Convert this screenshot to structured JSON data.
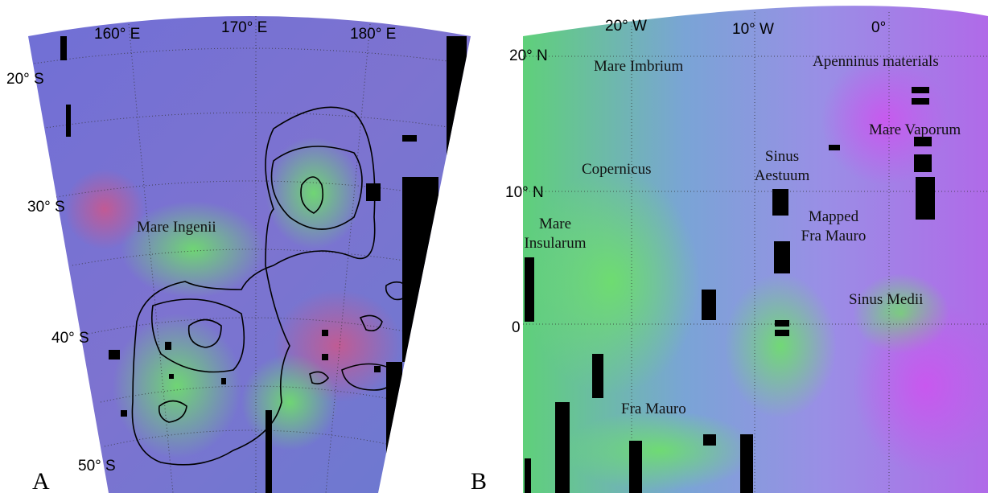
{
  "panel_a": {
    "letter": "A",
    "longitude_labels": [
      "160° E",
      "170° E",
      "180° E"
    ],
    "latitude_labels": [
      "20° S",
      "30° S",
      "40° S",
      "50° S"
    ],
    "feature_labels": [
      "Mare Ingenii"
    ]
  },
  "panel_b": {
    "letter": "B",
    "longitude_labels": [
      "20° W",
      "10° W",
      "0°"
    ],
    "latitude_labels": [
      "20° N",
      "10° N",
      "0"
    ],
    "feature_labels": [
      {
        "lines": [
          "Mare Imbrium"
        ]
      },
      {
        "lines": [
          "Apenninus materials"
        ]
      },
      {
        "lines": [
          "Mare Vaporum"
        ]
      },
      {
        "lines": [
          "Copernicus"
        ]
      },
      {
        "lines": [
          "Sinus",
          "Aestuum"
        ]
      },
      {
        "lines": [
          "Mapped",
          "Fra Mauro"
        ]
      },
      {
        "lines": [
          "Mare",
          "Insularum"
        ]
      },
      {
        "lines": [
          "Sinus Medii"
        ]
      },
      {
        "lines": [
          "Fra Mauro"
        ]
      }
    ]
  }
}
